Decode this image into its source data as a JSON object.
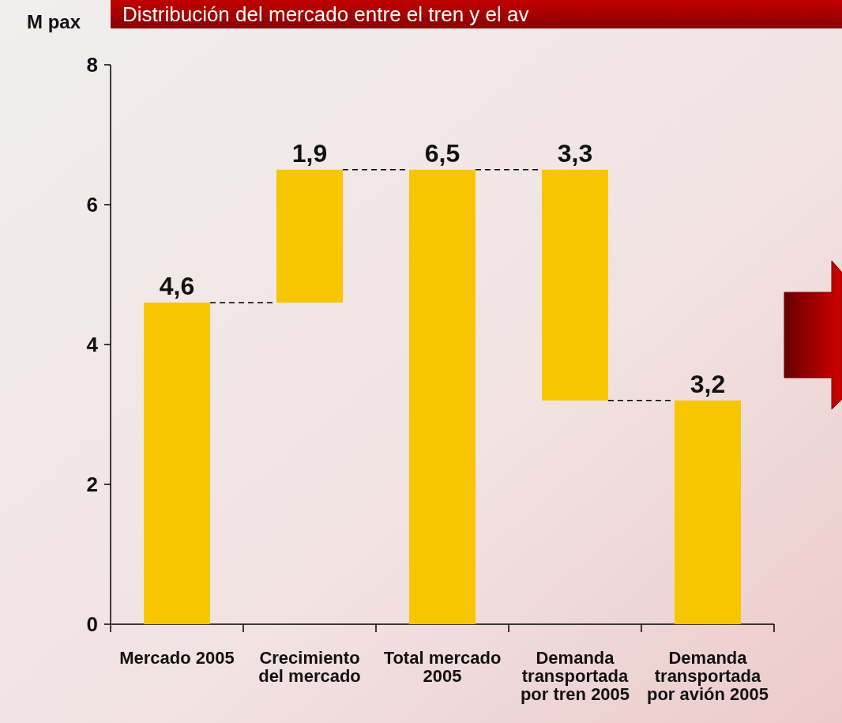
{
  "chart_data": {
    "type": "bar",
    "title": "Distribución del mercado entre el tren y el av",
    "ylabel": "M pax",
    "categories": [
      "Mercado 2005",
      "Crecimiento del mercado",
      "Total mercado 2005",
      "Demanda transportada por tren 2005",
      "Demanda transportada por avión 2005"
    ],
    "values": [
      4.6,
      1.9,
      6.5,
      3.3,
      3.2
    ],
    "base": [
      0,
      4.6,
      0,
      3.2,
      0
    ],
    "value_labels": [
      "4,6",
      "1,9",
      "6,5",
      "3,3",
      "3,2"
    ],
    "color": "#f7c600",
    "ylim": [
      0,
      8
    ],
    "yticks": [
      0,
      2,
      4,
      6,
      8
    ]
  }
}
